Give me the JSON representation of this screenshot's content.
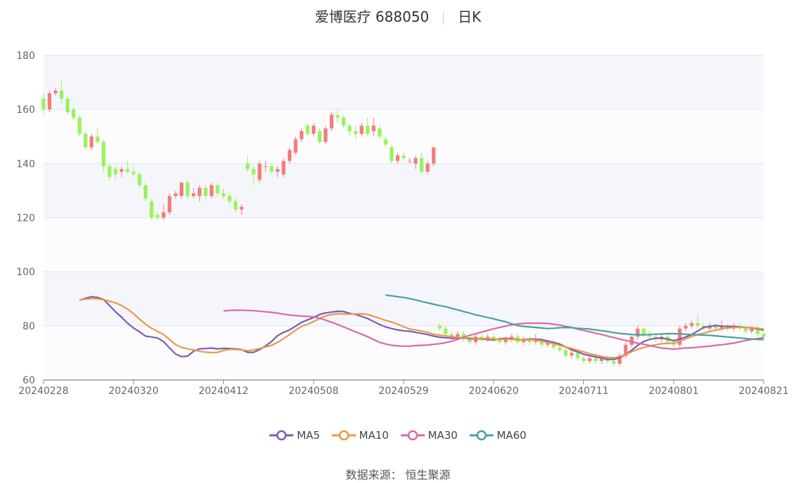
{
  "title": {
    "name": "爱博医疗 688050",
    "period": "日K"
  },
  "source": "数据来源： 恒生聚源",
  "legend": [
    {
      "label": "MA5",
      "color": "#7b5cb8"
    },
    {
      "label": "MA10",
      "color": "#e69a45"
    },
    {
      "label": "MA30",
      "color": "#d86aa8"
    },
    {
      "label": "MA60",
      "color": "#4d9fa0"
    }
  ],
  "chart_data": {
    "type": "candlestick",
    "ylim": [
      60,
      180
    ],
    "yticks": [
      "60",
      "80",
      "100",
      "120",
      "140",
      "160",
      "180"
    ],
    "xticks": [
      {
        "label": "20240228",
        "i": 0
      },
      {
        "label": "20240320",
        "i": 15
      },
      {
        "label": "20240412",
        "i": 30
      },
      {
        "label": "20240508",
        "i": 45
      },
      {
        "label": "20240529",
        "i": 60
      },
      {
        "label": "20240620",
        "i": 75
      },
      {
        "label": "20240711",
        "i": 90
      },
      {
        "label": "20240801",
        "i": 105
      },
      {
        "label": "20240821",
        "i": 120
      }
    ],
    "up_color": "#f47c7c",
    "down_color": "#9af25c",
    "candles": [
      [
        164,
        160,
        158,
        166
      ],
      [
        160,
        166,
        159,
        167
      ],
      [
        166,
        167,
        165,
        168
      ],
      [
        167,
        164,
        162,
        171
      ],
      [
        164,
        159,
        158,
        165
      ],
      [
        160,
        157,
        156,
        161
      ],
      [
        157,
        151,
        150,
        158
      ],
      [
        151,
        146,
        145,
        152
      ],
      [
        146,
        150,
        145,
        151
      ],
      [
        150,
        148,
        147,
        153
      ],
      [
        148,
        139,
        137,
        149
      ],
      [
        139,
        135,
        134,
        140
      ],
      [
        138,
        136,
        134,
        139
      ],
      [
        137,
        138,
        135,
        139
      ],
      [
        138,
        137,
        136,
        141
      ],
      [
        137,
        136,
        135,
        139
      ],
      [
        136,
        132,
        131,
        137
      ],
      [
        132,
        127,
        126,
        133
      ],
      [
        126,
        120,
        119,
        127
      ],
      [
        121,
        120,
        119,
        122
      ],
      [
        120,
        122,
        119,
        125
      ],
      [
        122,
        128,
        121,
        129
      ],
      [
        128,
        129,
        127,
        130
      ],
      [
        128,
        133,
        127,
        133
      ],
      [
        133,
        128,
        127,
        134
      ],
      [
        128,
        129,
        127,
        131
      ],
      [
        128,
        131,
        126,
        132
      ],
      [
        131,
        128,
        127,
        132
      ],
      [
        128,
        132,
        127,
        133
      ],
      [
        132,
        129,
        128,
        133
      ],
      [
        129,
        128,
        127,
        131
      ],
      [
        128,
        126,
        125,
        129
      ],
      [
        126,
        123,
        122,
        127
      ],
      [
        123,
        124,
        121,
        125
      ],
      [
        140,
        138,
        137,
        143
      ],
      [
        138,
        136,
        132,
        139
      ],
      [
        134,
        140,
        133,
        141
      ],
      [
        139,
        139,
        137,
        141
      ],
      [
        139,
        137,
        136,
        140
      ],
      [
        137,
        138,
        135,
        139
      ],
      [
        136,
        141,
        135,
        142
      ],
      [
        141,
        145,
        140,
        146
      ],
      [
        144,
        149,
        143,
        150
      ],
      [
        149,
        152,
        148,
        153
      ],
      [
        154,
        151,
        150,
        155
      ],
      [
        151,
        154,
        150,
        155
      ],
      [
        152,
        148,
        147,
        153
      ],
      [
        148,
        153,
        147,
        154
      ],
      [
        153,
        158,
        152,
        159
      ],
      [
        158,
        157,
        155,
        160
      ],
      [
        157,
        154,
        153,
        158
      ],
      [
        154,
        152,
        150,
        155
      ],
      [
        152,
        151,
        149,
        154
      ],
      [
        151,
        154,
        150,
        155
      ],
      [
        154,
        151,
        150,
        157
      ],
      [
        152,
        154,
        150,
        157
      ],
      [
        153,
        150,
        149,
        154
      ],
      [
        149,
        147,
        146,
        150
      ],
      [
        146,
        141,
        140,
        147
      ],
      [
        141,
        143,
        140,
        144
      ],
      [
        143,
        142,
        141,
        144
      ],
      [
        141,
        141,
        140,
        142
      ],
      [
        140,
        142,
        138,
        143
      ],
      [
        142,
        137,
        136,
        144
      ],
      [
        137,
        140,
        136,
        141
      ],
      [
        140,
        146,
        139,
        146
      ],
      [
        80,
        79,
        78,
        81
      ],
      [
        79,
        77,
        76,
        80
      ],
      [
        77,
        76,
        75,
        78
      ],
      [
        76,
        77,
        75,
        78
      ],
      [
        77,
        75,
        74,
        78
      ],
      [
        75,
        74,
        73,
        76
      ],
      [
        74,
        76,
        73,
        77
      ],
      [
        76,
        75,
        74,
        77
      ],
      [
        75,
        76,
        74,
        77
      ],
      [
        76,
        75,
        74,
        77
      ],
      [
        75,
        74,
        73,
        76
      ],
      [
        74,
        75,
        73,
        76
      ],
      [
        75,
        76,
        74,
        77
      ],
      [
        76,
        74,
        73,
        77
      ],
      [
        74,
        75,
        73,
        76
      ],
      [
        75,
        74,
        73,
        76
      ],
      [
        74,
        75,
        73,
        77
      ],
      [
        75,
        73,
        72,
        76
      ],
      [
        73,
        74,
        72,
        75
      ],
      [
        74,
        72,
        71,
        75
      ],
      [
        72,
        71,
        70,
        73
      ],
      [
        71,
        69,
        68,
        72
      ],
      [
        69,
        70,
        68,
        72
      ],
      [
        70,
        68,
        67,
        71
      ],
      [
        68,
        67,
        66,
        69
      ],
      [
        67,
        68,
        66,
        69
      ],
      [
        68,
        67,
        66,
        70
      ],
      [
        67,
        68,
        66,
        69
      ],
      [
        68,
        67,
        66,
        69
      ],
      [
        67,
        66,
        65,
        68
      ],
      [
        66,
        69,
        65,
        70
      ],
      [
        69,
        73,
        68,
        74
      ],
      [
        73,
        76,
        72,
        77
      ],
      [
        76,
        79,
        75,
        80
      ],
      [
        79,
        77,
        76,
        79
      ],
      [
        77,
        76,
        75,
        78
      ],
      [
        76,
        75,
        74,
        77
      ],
      [
        75,
        76,
        74,
        77
      ],
      [
        76,
        74,
        73,
        77
      ],
      [
        74,
        73,
        72,
        75
      ],
      [
        73,
        79,
        72,
        80
      ],
      [
        79,
        80,
        78,
        81
      ],
      [
        80,
        81,
        79,
        82
      ],
      [
        81,
        80,
        79,
        84
      ],
      [
        80,
        79,
        78,
        81
      ],
      [
        79,
        80,
        78,
        81
      ],
      [
        80,
        79,
        78,
        81
      ],
      [
        79,
        80,
        78,
        82
      ],
      [
        80,
        79,
        78,
        81
      ],
      [
        79,
        80,
        78,
        81
      ],
      [
        80,
        79,
        78,
        81
      ],
      [
        79,
        78,
        77,
        80
      ],
      [
        78,
        79,
        77,
        80
      ],
      [
        79,
        77,
        76,
        80
      ],
      [
        77,
        76,
        75,
        78
      ]
    ],
    "series": [
      {
        "name": "MA5",
        "color": "#7b5cb8",
        "values": [
          89.5,
          90.2,
          90.8,
          90.5,
          89.8,
          87.5,
          85.2,
          83.2,
          81,
          79.2,
          77.8,
          76.2,
          75.9,
          75.5,
          74.2,
          71.8,
          69.6,
          68.6,
          68.8,
          70.6,
          71.5,
          71.6,
          71.8,
          71.5,
          71.7,
          71.6,
          71.5,
          71.2,
          70.2,
          70.2,
          71.2,
          72.6,
          74.2,
          76.4,
          77.6,
          78.5,
          79.9,
          81.3,
          82.2,
          83.1,
          84.2,
          84.8,
          85.1,
          85.4,
          85.3,
          84.6,
          84.2,
          83.5,
          82.7,
          81.6,
          80.5,
          79.6,
          79,
          78.5,
          78.2,
          78,
          77.6,
          77.2,
          76.8,
          76.2,
          75.8,
          75.6,
          75.4,
          75.5,
          75.6,
          75.2,
          75.3,
          75.1,
          74.9,
          74.8,
          75.2,
          75.4,
          75.2,
          74.9,
          74.9,
          75.1,
          75.1,
          74.9,
          74.4,
          73.9,
          73.3,
          72.2,
          71.1,
          70.4,
          69.5,
          69,
          68.5,
          68.1,
          67.6,
          67.6,
          68.2,
          69.4,
          71,
          72.8,
          74.2,
          75,
          75.4,
          75.5,
          75.1,
          74.5,
          75.1,
          75.9,
          76.8,
          78.1,
          79.4,
          79.8,
          80.1,
          79.9,
          79.8,
          79.8,
          79.6,
          79.4,
          79.2,
          78.9,
          78.4
        ]
      },
      {
        "name": "MA10",
        "color": "#e69a45",
        "values": [
          89.6,
          89.9,
          90.1,
          90,
          89.7,
          89.1,
          88.5,
          87.5,
          86.2,
          84.5,
          82.5,
          80.6,
          79.1,
          77.9,
          76.8,
          74.9,
          73.1,
          72,
          71.5,
          71.1,
          70.6,
          70.3,
          70.1,
          70.2,
          70.9,
          71.3,
          71.3,
          71.1,
          70.8,
          71.1,
          71.6,
          72.2,
          72.8,
          73.9,
          75.3,
          76.8,
          78.4,
          79.8,
          80.6,
          81.6,
          82.7,
          83.7,
          84.2,
          84.5,
          84.4,
          84.3,
          84.4,
          84.5,
          84.2,
          83.5,
          82.8,
          82,
          81.4,
          80.6,
          79.7,
          78.8,
          78.5,
          78.1,
          77.6,
          76.9,
          76.6,
          76.3,
          76,
          75.7,
          75.5,
          75.5,
          75.4,
          75.3,
          75.2,
          75.1,
          75,
          75.1,
          75,
          74.9,
          74.8,
          74.9,
          74.8,
          74.4,
          73.9,
          73.4,
          72.8,
          72.2,
          71.6,
          71,
          70.4,
          69.7,
          69.2,
          68.7,
          68.3,
          68.2,
          68.6,
          69.4,
          70.4,
          71.3,
          72,
          72.6,
          73,
          73.4,
          73.5,
          73.6,
          74.3,
          75.2,
          76.1,
          76.8,
          77.3,
          77.9,
          78.4,
          78.9,
          79.2,
          79.4,
          79.5,
          79.4,
          79.3,
          79.1,
          78.8
        ]
      },
      {
        "name": "MA30",
        "color": "#d86aa8",
        "values": [
          85.5,
          85.7,
          85.8,
          85.8,
          85.7,
          85.6,
          85.4,
          85.2,
          85,
          84.7,
          84.3,
          84,
          83.8,
          83.6,
          83.5,
          83.3,
          82.8,
          82.1,
          81.3,
          80.5,
          79.6,
          78.7,
          77.8,
          76.9,
          76,
          74.9,
          73.9,
          73.3,
          72.8,
          72.6,
          72.5,
          72.5,
          72.7,
          72.8,
          72.9,
          73.2,
          73.4,
          73.8,
          74.3,
          75,
          75.8,
          76.5,
          77.1,
          77.7,
          78.3,
          78.9,
          79.4,
          79.9,
          80.4,
          80.7,
          80.9,
          81,
          81,
          81,
          80.9,
          80.6,
          80.3,
          79.8,
          79.4,
          78.8,
          78.3,
          77.8,
          77.3,
          76.8,
          76.2,
          75.7,
          75.1,
          74.6,
          74.1,
          73.6,
          73.2,
          72.7,
          72.2,
          71.8,
          71.6,
          71.4,
          71.6,
          71.8,
          71.9,
          72.1,
          72.3,
          72.5,
          72.8,
          73,
          73.3,
          73.6,
          74.1,
          74.6,
          75,
          75.3,
          75.7
        ]
      },
      {
        "name": "MA60",
        "color": "#4d9fa0",
        "values": [
          91.4,
          91.1,
          90.8,
          90.5,
          90.1,
          89.6,
          89,
          88.5,
          88,
          87.5,
          87.1,
          86.5,
          85.9,
          85.3,
          84.7,
          84.1,
          83.6,
          83.1,
          82.6,
          82,
          81.5,
          80.7,
          80.1,
          79.8,
          79.6,
          79.4,
          79.2,
          79,
          79.1,
          79.3,
          79.4,
          79.3,
          79.1,
          79,
          78.8,
          78.5,
          78.2,
          77.9,
          77.5,
          77.2,
          77,
          76.8,
          76.7,
          76.7,
          76.8,
          76.9,
          77,
          77.1,
          77.1,
          77,
          76.9,
          76.8,
          76.7,
          76.6,
          76.5,
          76.3,
          76.1,
          75.9,
          75.7,
          75.5,
          75.3,
          75.1,
          75,
          74.9
        ]
      }
    ]
  }
}
